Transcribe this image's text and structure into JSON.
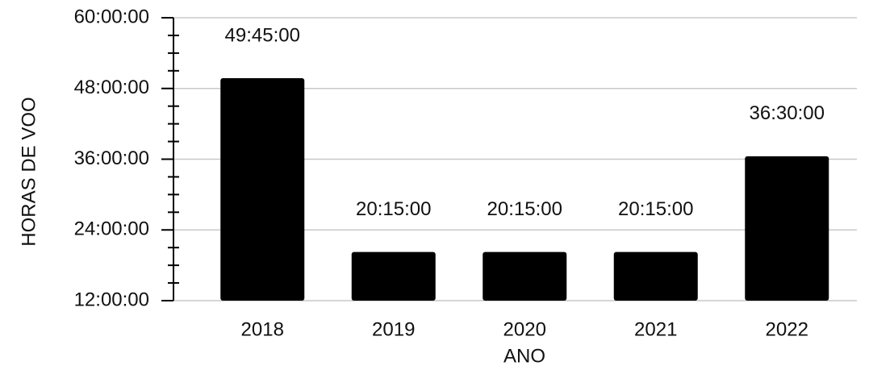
{
  "chart_data": {
    "type": "bar",
    "x_label": "ANO",
    "y_label": "HORAS DE VOO",
    "categories": [
      "2018",
      "2019",
      "2020",
      "2021",
      "2022"
    ],
    "values": [
      49.75,
      20.25,
      20.25,
      20.25,
      36.5
    ],
    "value_labels": [
      "49:45:00",
      "20:15:00",
      "20:15:00",
      "20:15:00",
      "36:30:00"
    ],
    "color": "#000000",
    "ylim": [
      12,
      60
    ],
    "yticks": [
      {
        "value": 12,
        "label": "12:00:00"
      },
      {
        "value": 24,
        "label": "24:00:00"
      },
      {
        "value": 36,
        "label": "36:00:00"
      },
      {
        "value": 48,
        "label": "48:00:00"
      },
      {
        "value": 60,
        "label": "60:00:00"
      }
    ],
    "minor_yticks": [
      15,
      18,
      21,
      27,
      30,
      33,
      39,
      42,
      45,
      51,
      54,
      57
    ],
    "grid": true
  }
}
